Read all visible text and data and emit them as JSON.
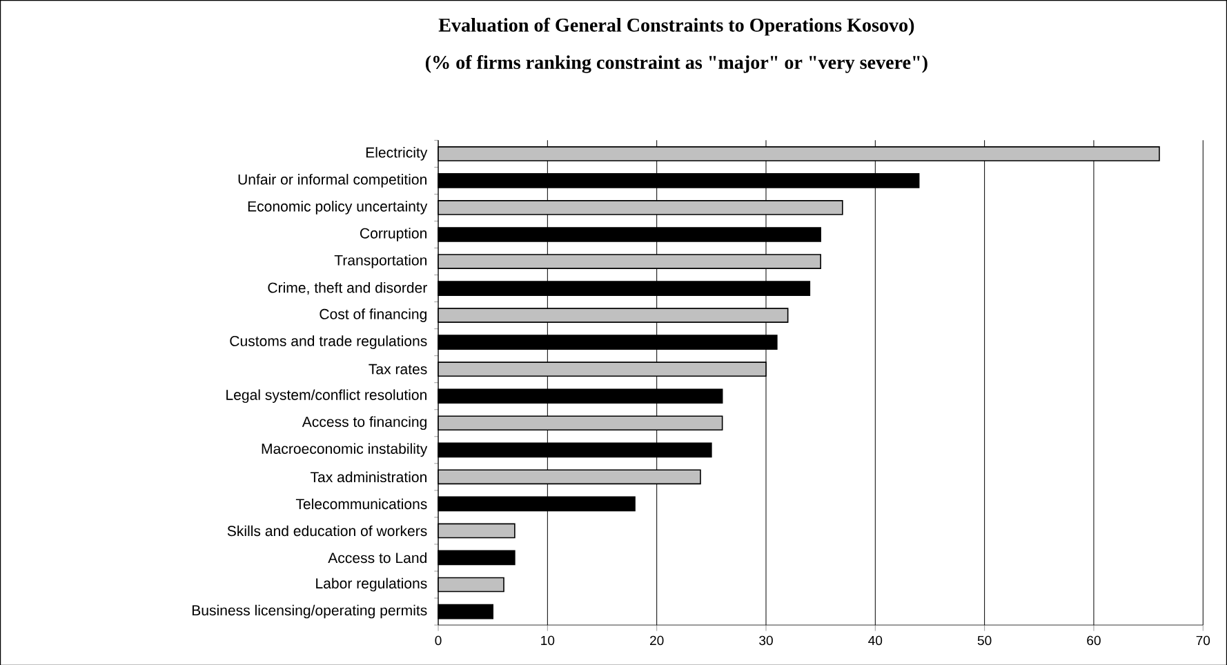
{
  "chart_data": {
    "type": "bar",
    "orientation": "horizontal",
    "title": "Evaluation of General Constraints to Operations Kosovo)",
    "subtitle": "(% of firms ranking constraint as \"major\" or \"very severe\")",
    "categories": [
      "Electricity",
      "Unfair or informal competition",
      "Economic policy uncertainty",
      "Corruption",
      "Transportation",
      "Crime, theft and disorder",
      "Cost of financing",
      "Customs and trade regulations",
      "Tax rates",
      "Legal system/conflict resolution",
      "Access to financing",
      "Macroeconomic instability",
      "Tax administration",
      "Telecommunications",
      "Skills and education of workers",
      "Access to Land",
      "Labor regulations",
      "Business licensing/operating permits"
    ],
    "values": [
      66,
      44,
      37,
      35,
      35,
      34,
      32,
      31,
      30,
      26,
      26,
      25,
      24,
      18,
      7,
      7,
      6,
      5
    ],
    "colors": [
      "#c0c0c0",
      "#000000",
      "#c0c0c0",
      "#000000",
      "#c0c0c0",
      "#000000",
      "#c0c0c0",
      "#000000",
      "#c0c0c0",
      "#000000",
      "#c0c0c0",
      "#000000",
      "#c0c0c0",
      "#000000",
      "#c0c0c0",
      "#000000",
      "#c0c0c0",
      "#000000"
    ],
    "xlim": [
      0,
      70
    ],
    "xticks": [
      0,
      10,
      20,
      30,
      40,
      50,
      60,
      70
    ],
    "grid": "x"
  }
}
